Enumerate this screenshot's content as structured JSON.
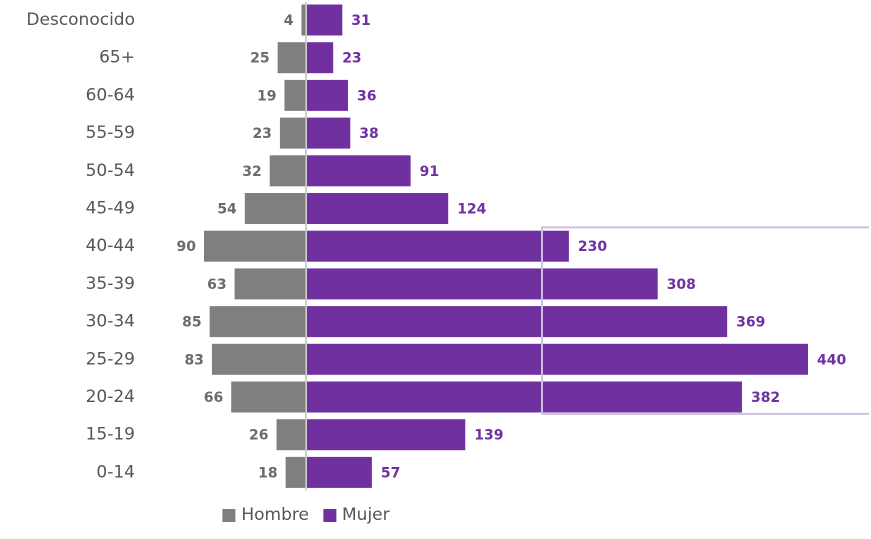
{
  "chart_data": {
    "type": "bar",
    "orientation": "horizontal-population-pyramid",
    "title": "",
    "xlabel": "",
    "ylabel": "",
    "categories": [
      "Desconocido",
      "65+",
      "60-64",
      "55-59",
      "50-54",
      "45-49",
      "40-44",
      "35-39",
      "30-34",
      "25-29",
      "20-24",
      "15-19",
      "0-14"
    ],
    "series": [
      {
        "name": "Hombre",
        "color": "#7f7f7f",
        "label_color": "#6b6b6b",
        "values": [
          4,
          25,
          19,
          23,
          32,
          54,
          90,
          63,
          85,
          83,
          66,
          26,
          18
        ]
      },
      {
        "name": "Mujer",
        "color": "#7030a0",
        "label_color": "#7030a0",
        "values": [
          31,
          23,
          36,
          38,
          91,
          124,
          230,
          308,
          369,
          440,
          382,
          139,
          57
        ]
      }
    ],
    "highlight": {
      "categories": [
        "40-44",
        "35-39",
        "30-34",
        "25-29",
        "20-24"
      ],
      "outline_color": "#cdbfe3"
    },
    "legend_position": "bottom",
    "grid": false
  }
}
